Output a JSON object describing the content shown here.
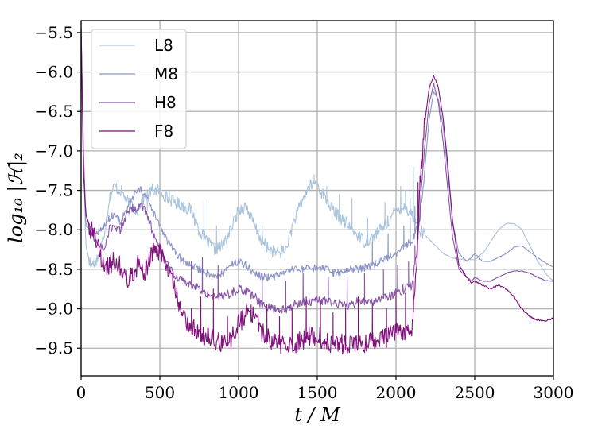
{
  "chart_data": {
    "type": "line",
    "xlabel": "t / M",
    "ylabel": "log₁₀ |ℋ|₂",
    "xlim": [
      0,
      3000
    ],
    "ylim": [
      -9.85,
      -5.35
    ],
    "xticks": [
      0,
      500,
      1000,
      1500,
      2000,
      2500,
      3000
    ],
    "xtick_labels": [
      "0",
      "500",
      "1000",
      "1500",
      "2000",
      "2500",
      "3000"
    ],
    "yticks": [
      -9.5,
      -9.0,
      -8.5,
      -8.0,
      -7.5,
      -7.0,
      -6.5,
      -6.0,
      -5.5
    ],
    "ytick_labels": [
      "−9.5",
      "−9.0",
      "−8.5",
      "−8.0",
      "−7.5",
      "−7.0",
      "−6.5",
      "−6.0",
      "−5.5"
    ],
    "grid": true,
    "legend_position": "top-left",
    "series": [
      {
        "name": "L8",
        "color": "#a9c4dc",
        "noise": 0.08,
        "x": [
          0,
          15,
          30,
          60,
          90,
          120,
          150,
          180,
          210,
          250,
          300,
          350,
          400,
          450,
          500,
          550,
          600,
          650,
          700,
          750,
          800,
          850,
          900,
          950,
          1000,
          1050,
          1100,
          1150,
          1200,
          1250,
          1300,
          1350,
          1400,
          1450,
          1490,
          1550,
          1600,
          1650,
          1700,
          1750,
          1800,
          1850,
          1900,
          1950,
          2000,
          2050,
          2100,
          2150,
          2200,
          2250,
          2300,
          2350,
          2400,
          2450,
          2500,
          2550,
          2600,
          2650,
          2700,
          2750,
          2800,
          2850,
          2900,
          2950,
          3000
        ],
        "y": [
          -5.4,
          -7.0,
          -8.2,
          -8.45,
          -8.4,
          -8.3,
          -8.0,
          -7.6,
          -7.45,
          -7.5,
          -7.65,
          -7.75,
          -7.6,
          -7.5,
          -7.5,
          -7.6,
          -7.65,
          -7.7,
          -7.75,
          -8.0,
          -8.15,
          -8.25,
          -8.2,
          -8.0,
          -7.75,
          -7.7,
          -7.95,
          -8.15,
          -8.25,
          -8.3,
          -8.25,
          -7.9,
          -7.65,
          -7.45,
          -7.4,
          -7.6,
          -7.75,
          -7.85,
          -7.95,
          -8.05,
          -8.15,
          -8.1,
          -8.0,
          -7.9,
          -7.75,
          -7.7,
          -7.8,
          -8.0,
          -8.1,
          -8.2,
          -8.3,
          -8.35,
          -8.37,
          -8.38,
          -8.38,
          -8.3,
          -8.15,
          -8.0,
          -7.92,
          -7.92,
          -8.0,
          -8.2,
          -8.4,
          -8.55,
          -8.65
        ],
        "spikes": [
          [
            310,
            -7.85
          ],
          [
            420,
            -7.75
          ],
          [
            560,
            -7.5
          ],
          [
            720,
            -7.95
          ],
          [
            780,
            -7.65
          ],
          [
            860,
            -7.95
          ],
          [
            1150,
            -7.95
          ],
          [
            1330,
            -8.0
          ],
          [
            1480,
            -7.3
          ],
          [
            1560,
            -7.45
          ],
          [
            1640,
            -7.55
          ],
          [
            1720,
            -7.6
          ],
          [
            1820,
            -7.85
          ],
          [
            1930,
            -7.65
          ],
          [
            2030,
            -7.45
          ],
          [
            2060,
            -7.5
          ],
          [
            2090,
            -7.6
          ],
          [
            2110,
            -7.2
          ]
        ]
      },
      {
        "name": "M8",
        "color": "#8c96c6",
        "noise": 0.05,
        "x": [
          0,
          15,
          30,
          60,
          90,
          120,
          150,
          180,
          210,
          250,
          300,
          350,
          380,
          420,
          450,
          500,
          550,
          600,
          650,
          700,
          750,
          800,
          850,
          900,
          950,
          1000,
          1050,
          1100,
          1150,
          1200,
          1250,
          1300,
          1350,
          1400,
          1450,
          1500,
          1550,
          1600,
          1650,
          1700,
          1750,
          1800,
          1850,
          1900,
          1950,
          2000,
          2050,
          2100,
          2150,
          2180,
          2210,
          2240,
          2270,
          2300,
          2330,
          2360,
          2400,
          2450,
          2480,
          2500,
          2550,
          2600,
          2650,
          2700,
          2750,
          2800,
          2850,
          2900,
          2950,
          3000
        ],
        "y": [
          -5.45,
          -7.0,
          -7.95,
          -8.0,
          -8.05,
          -8.0,
          -7.95,
          -7.85,
          -7.8,
          -7.9,
          -7.7,
          -7.52,
          -7.5,
          -7.6,
          -7.75,
          -7.95,
          -8.15,
          -8.3,
          -8.4,
          -8.45,
          -8.5,
          -8.55,
          -8.6,
          -8.55,
          -8.45,
          -8.4,
          -8.45,
          -8.55,
          -8.6,
          -8.6,
          -8.58,
          -8.55,
          -8.5,
          -8.5,
          -8.5,
          -8.48,
          -8.5,
          -8.55,
          -8.55,
          -8.5,
          -8.5,
          -8.48,
          -8.45,
          -8.4,
          -8.35,
          -8.3,
          -8.2,
          -8.15,
          -7.9,
          -7.3,
          -6.6,
          -6.25,
          -6.35,
          -6.7,
          -7.3,
          -7.9,
          -8.3,
          -8.4,
          -8.35,
          -8.3,
          -8.4,
          -8.4,
          -8.35,
          -8.3,
          -8.22,
          -8.2,
          -8.28,
          -8.35,
          -8.42,
          -8.47
        ],
        "spikes": [
          [
            1850,
            -8.15
          ],
          [
            1950,
            -8.05
          ],
          [
            2050,
            -7.95
          ],
          [
            2090,
            -7.85
          ],
          [
            2120,
            -7.7
          ],
          [
            2140,
            -7.5
          ]
        ]
      },
      {
        "name": "H8",
        "color": "#8856a7",
        "noise": 0.06,
        "x": [
          0,
          15,
          30,
          60,
          90,
          120,
          150,
          180,
          210,
          250,
          300,
          350,
          380,
          420,
          450,
          500,
          550,
          600,
          650,
          700,
          750,
          800,
          850,
          900,
          950,
          1000,
          1050,
          1100,
          1150,
          1200,
          1250,
          1300,
          1350,
          1400,
          1450,
          1500,
          1550,
          1600,
          1650,
          1700,
          1750,
          1800,
          1850,
          1900,
          1950,
          2000,
          2050,
          2100,
          2130,
          2150,
          2180,
          2210,
          2240,
          2270,
          2300,
          2330,
          2360,
          2400,
          2450,
          2480,
          2500,
          2550,
          2600,
          2650,
          2700,
          2750,
          2800,
          2850,
          2900,
          2950,
          3000
        ],
        "y": [
          -5.45,
          -7.1,
          -7.8,
          -8.0,
          -8.15,
          -8.2,
          -8.25,
          -8.0,
          -7.95,
          -8.0,
          -7.75,
          -7.72,
          -7.7,
          -7.8,
          -8.0,
          -8.25,
          -8.45,
          -8.6,
          -8.65,
          -8.7,
          -8.75,
          -8.8,
          -8.85,
          -8.85,
          -8.8,
          -8.75,
          -8.78,
          -8.85,
          -8.95,
          -9.0,
          -9.0,
          -9.0,
          -8.95,
          -8.92,
          -8.9,
          -8.9,
          -8.9,
          -8.92,
          -8.95,
          -8.95,
          -8.92,
          -8.9,
          -8.9,
          -8.88,
          -8.85,
          -8.8,
          -8.75,
          -8.7,
          -8.3,
          -7.8,
          -7.0,
          -6.4,
          -6.15,
          -6.4,
          -6.9,
          -7.5,
          -8.1,
          -8.5,
          -8.6,
          -8.65,
          -8.6,
          -8.65,
          -8.65,
          -8.6,
          -8.55,
          -8.52,
          -8.52,
          -8.55,
          -8.6,
          -8.64,
          -8.65
        ],
        "spikes": [
          [
            700,
            -8.4
          ],
          [
            770,
            -8.35
          ],
          [
            870,
            -8.45
          ],
          [
            1150,
            -8.55
          ],
          [
            1300,
            -8.65
          ],
          [
            1410,
            -8.55
          ],
          [
            1570,
            -8.6
          ],
          [
            1690,
            -8.6
          ],
          [
            1800,
            -8.55
          ],
          [
            1920,
            -8.5
          ],
          [
            2010,
            -8.45
          ],
          [
            2080,
            -8.4
          ],
          [
            2120,
            -8.2
          ]
        ]
      },
      {
        "name": "F8",
        "color": "#810f7c",
        "noise": 0.13,
        "x": [
          0,
          15,
          30,
          60,
          90,
          120,
          150,
          180,
          210,
          250,
          300,
          330,
          360,
          400,
          450,
          500,
          550,
          600,
          650,
          700,
          750,
          800,
          850,
          900,
          950,
          1000,
          1050,
          1100,
          1150,
          1200,
          1250,
          1300,
          1350,
          1400,
          1450,
          1500,
          1550,
          1600,
          1650,
          1700,
          1750,
          1800,
          1850,
          1900,
          1950,
          2000,
          2050,
          2100,
          2130,
          2150,
          2180,
          2210,
          2240,
          2270,
          2300,
          2330,
          2360,
          2400,
          2450,
          2480,
          2500,
          2550,
          2600,
          2650,
          2700,
          2750,
          2800,
          2850,
          2900,
          2950,
          3000
        ],
        "y": [
          -5.45,
          -7.3,
          -7.8,
          -8.0,
          -8.1,
          -8.3,
          -8.5,
          -8.45,
          -8.4,
          -8.45,
          -8.65,
          -8.55,
          -8.45,
          -8.55,
          -8.3,
          -8.25,
          -8.5,
          -8.8,
          -9.1,
          -9.25,
          -9.3,
          -9.35,
          -9.4,
          -9.45,
          -9.4,
          -9.2,
          -9.05,
          -9.1,
          -9.3,
          -9.4,
          -9.45,
          -9.45,
          -9.45,
          -9.4,
          -9.35,
          -9.35,
          -9.4,
          -9.45,
          -9.45,
          -9.45,
          -9.45,
          -9.45,
          -9.4,
          -9.4,
          -9.35,
          -9.3,
          -9.35,
          -9.3,
          -8.5,
          -7.5,
          -6.7,
          -6.2,
          -6.05,
          -6.2,
          -6.6,
          -7.2,
          -7.9,
          -8.45,
          -8.6,
          -8.68,
          -8.65,
          -8.7,
          -8.75,
          -8.7,
          -8.75,
          -8.85,
          -9.0,
          -9.1,
          -9.15,
          -9.15,
          -9.12
        ],
        "spikes": [
          [
            620,
            -8.95
          ],
          [
            700,
            -9.0
          ],
          [
            760,
            -8.85
          ],
          [
            840,
            -8.75
          ],
          [
            930,
            -9.1
          ],
          [
            1080,
            -8.95
          ],
          [
            1180,
            -8.95
          ],
          [
            1260,
            -9.1
          ],
          [
            1340,
            -9.0
          ],
          [
            1430,
            -8.85
          ],
          [
            1520,
            -8.9
          ],
          [
            1600,
            -9.05
          ],
          [
            1680,
            -9.0
          ],
          [
            1760,
            -8.85
          ],
          [
            1850,
            -8.95
          ],
          [
            1940,
            -9.0
          ],
          [
            2000,
            -8.8
          ],
          [
            2060,
            -8.8
          ],
          [
            2110,
            -8.65
          ],
          [
            2140,
            -7.4
          ],
          [
            2150,
            -7.5
          ]
        ]
      }
    ]
  }
}
